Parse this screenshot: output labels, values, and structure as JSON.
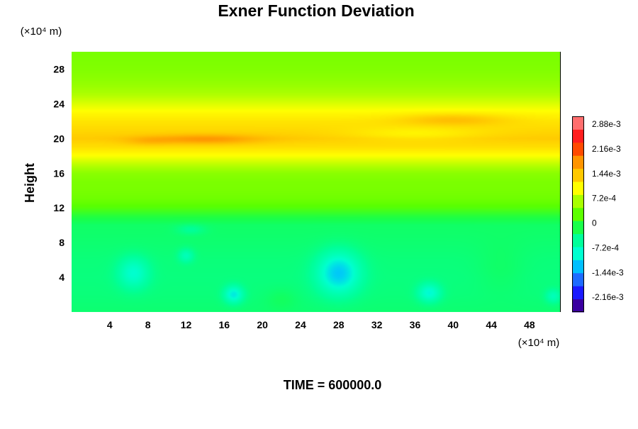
{
  "chart_data": {
    "type": "heatmap",
    "title": "Exner Function Deviation",
    "xlabel": "",
    "ylabel": "Height",
    "x_unit_label": "(×10⁴ m)",
    "y_unit_label": "(×10⁴ m)",
    "xlim": [
      0,
      51.2
    ],
    "ylim": [
      0,
      30
    ],
    "x_ticks": [
      "4",
      "8",
      "12",
      "16",
      "20",
      "24",
      "28",
      "32",
      "36",
      "40",
      "44",
      "48"
    ],
    "y_ticks": [
      "4",
      "8",
      "12",
      "16",
      "20",
      "24",
      "28"
    ],
    "x_tick_values": [
      4,
      8,
      12,
      16,
      20,
      24,
      28,
      32,
      36,
      40,
      44,
      48
    ],
    "y_tick_values": [
      4,
      8,
      12,
      16,
      20,
      24,
      28
    ],
    "colorbar": {
      "min": -0.0026,
      "max": 0.0031,
      "labels": [
        "2.88e-3",
        "2.16e-3",
        "1.44e-3",
        "7.2e-4",
        "0",
        "-7.2e-4",
        "-1.44e-3",
        "-2.16e-3"
      ],
      "label_values": [
        0.00288,
        0.00216,
        0.00144,
        0.00072,
        0,
        -0.00072,
        -0.00144,
        -0.00216
      ],
      "colors": [
        "#3a00a0",
        "#1a1aff",
        "#1e6bff",
        "#00bfff",
        "#00ffd0",
        "#00ff9a",
        "#19ff4a",
        "#5cff00",
        "#a8ff00",
        "#ffff00",
        "#ffc800",
        "#ff9400",
        "#ff4a00",
        "#ff1e1e",
        "#ff6e6e"
      ]
    },
    "field": {
      "y_profile": [
        [
          0,
          -0.00035
        ],
        [
          2,
          -0.0004
        ],
        [
          4,
          -0.00042
        ],
        [
          6,
          -0.0004
        ],
        [
          8,
          -0.00035
        ],
        [
          10,
          -0.0003
        ],
        [
          11,
          -0.0001
        ],
        [
          12,
          0.0002
        ],
        [
          13,
          0.00035
        ],
        [
          14,
          0.0004
        ],
        [
          15,
          0.00042
        ],
        [
          16,
          0.0005
        ],
        [
          17,
          0.00075
        ],
        [
          18,
          0.00105
        ],
        [
          19,
          0.0013
        ],
        [
          20,
          0.00145
        ],
        [
          21,
          0.00135
        ],
        [
          22,
          0.00125
        ],
        [
          23,
          0.0011
        ],
        [
          24,
          0.0009
        ],
        [
          25,
          0.0007
        ],
        [
          26,
          0.00058
        ],
        [
          27,
          0.0005
        ],
        [
          28,
          0.00045
        ],
        [
          30,
          0.0004
        ]
      ],
      "features": [
        {
          "x": 14,
          "y": 19.9,
          "sx": 5.5,
          "sy": 0.55,
          "amp": 0.00042
        },
        {
          "x": 8,
          "y": 19.7,
          "sx": 2.5,
          "sy": 0.5,
          "amp": 0.00018
        },
        {
          "x": 40,
          "y": 22.2,
          "sx": 5.5,
          "sy": 0.7,
          "amp": 0.00032
        },
        {
          "x": 36,
          "y": 20.5,
          "sx": 7,
          "sy": 0.8,
          "amp": -0.00025
        },
        {
          "x": 6.5,
          "y": 4.5,
          "sx": 1.6,
          "sy": 1.8,
          "amp": -0.00055
        },
        {
          "x": 28,
          "y": 4.5,
          "sx": 2.2,
          "sy": 2.4,
          "amp": -0.0009
        },
        {
          "x": 17,
          "y": 2,
          "sx": 1.0,
          "sy": 1.0,
          "amp": -0.0007
        },
        {
          "x": 37.5,
          "y": 2.2,
          "sx": 1.2,
          "sy": 1.1,
          "amp": -0.0006
        },
        {
          "x": 12,
          "y": 6.5,
          "sx": 0.8,
          "sy": 0.8,
          "amp": -0.0004
        },
        {
          "x": 12.5,
          "y": 9.5,
          "sx": 1.5,
          "sy": 0.6,
          "amp": -0.00025
        },
        {
          "x": 50.5,
          "y": 1.8,
          "sx": 0.8,
          "sy": 0.8,
          "amp": -0.0004
        },
        {
          "x": 22,
          "y": 1.5,
          "sx": 1.6,
          "sy": 1.2,
          "amp": 0.00012
        },
        {
          "x": 45,
          "y": 5,
          "sx": 2.5,
          "sy": 3,
          "amp": 0.0001
        }
      ]
    },
    "time_label": "TIME = 600000.0"
  }
}
